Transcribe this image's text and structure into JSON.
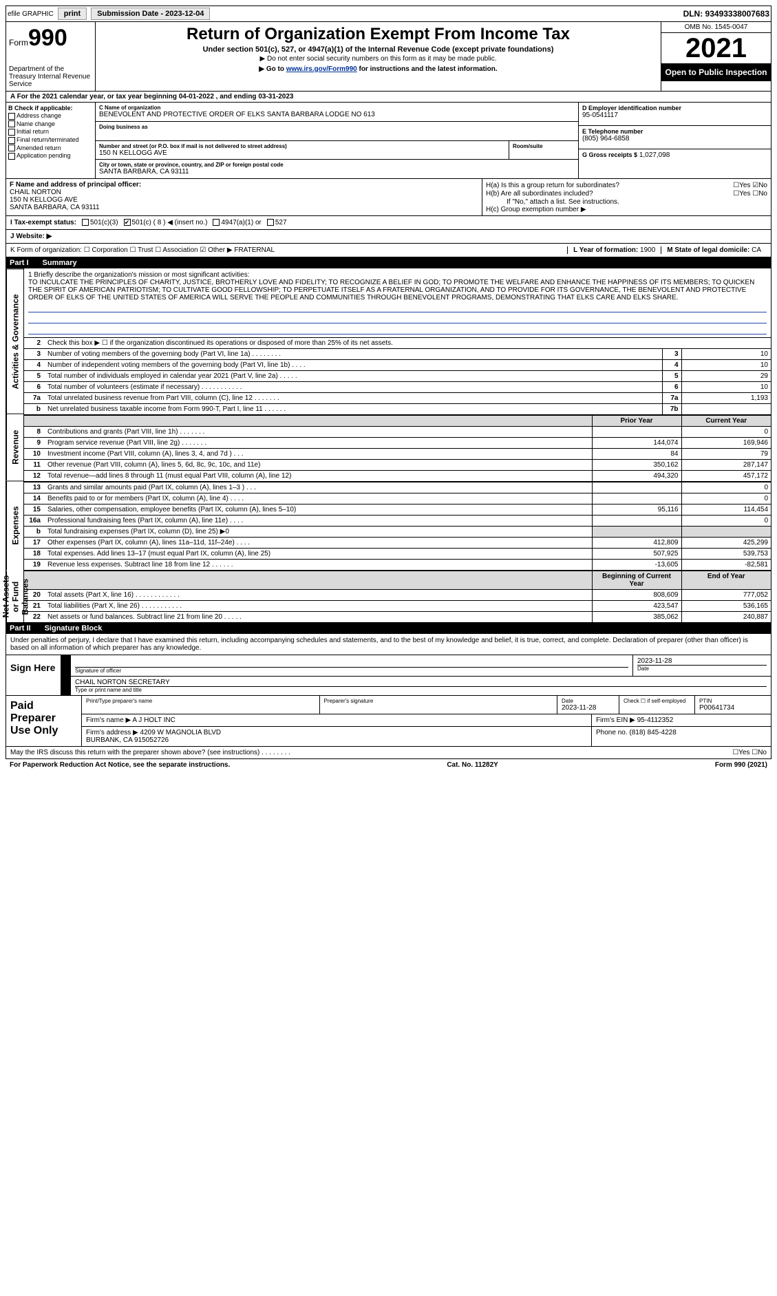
{
  "topbar": {
    "efile": "efile GRAPHIC",
    "print": "print",
    "sub_label": "Submission Date - 2023-12-04",
    "dln": "DLN: 93493338007683"
  },
  "header": {
    "form_word": "Form",
    "form_num": "990",
    "dept": "Department of the Treasury Internal Revenue Service",
    "title": "Return of Organization Exempt From Income Tax",
    "sub1": "Under section 501(c), 527, or 4947(a)(1) of the Internal Revenue Code (except private foundations)",
    "sub2": "▶ Do not enter social security numbers on this form as it may be made public.",
    "sub3_pre": "▶ Go to ",
    "sub3_link": "www.irs.gov/Form990",
    "sub3_post": " for instructions and the latest information.",
    "omb": "OMB No. 1545-0047",
    "year": "2021",
    "open_pub": "Open to Public Inspection"
  },
  "rowA": "A For the 2021 calendar year, or tax year beginning 04-01-2022   , and ending 03-31-2023",
  "colB": {
    "title": "B Check if applicable:",
    "opts": [
      "Address change",
      "Name change",
      "Initial return",
      "Final return/terminated",
      "Amended return",
      "Application pending"
    ]
  },
  "colC": {
    "name_lbl": "C Name of organization",
    "name": "BENEVOLENT AND PROTECTIVE ORDER OF ELKS SANTA BARBARA LODGE NO 613",
    "dba_lbl": "Doing business as",
    "dba": "",
    "street_lbl": "Number and street (or P.O. box if mail is not delivered to street address)",
    "street": "150 N KELLOGG AVE",
    "room_lbl": "Room/suite",
    "city_lbl": "City or town, state or province, country, and ZIP or foreign postal code",
    "city": "SANTA BARBARA, CA  93111"
  },
  "colDE": {
    "ein_lbl": "D Employer identification number",
    "ein": "95-0541117",
    "phone_lbl": "E Telephone number",
    "phone": "(805) 964-6858",
    "gross_lbl": "G Gross receipts $",
    "gross": "1,027,098"
  },
  "colF": {
    "lbl": "F  Name and address of principal officer:",
    "name": "CHAIL NORTON",
    "addr1": "150 N KELLOGG AVE",
    "addr2": "SANTA BARBARA, CA  93111"
  },
  "colH": {
    "a": "H(a)  Is this a group return for subordinates?",
    "a_ans": "☐Yes ☑No",
    "b": "H(b)  Are all subordinates included?",
    "b_ans": "☐Yes ☐No",
    "b_note": "If \"No,\" attach a list. See instructions.",
    "c": "H(c)  Group exemption number ▶"
  },
  "rowI": {
    "lbl": "I   Tax-exempt status:",
    "o1": "501(c)(3)",
    "o2": "501(c) ( 8 ) ◀ (insert no.)",
    "o3": "4947(a)(1) or",
    "o4": "527"
  },
  "rowJ": "J   Website: ▶",
  "rowK": {
    "left": "K Form of organization:  ☐ Corporation  ☐ Trust  ☐ Association  ☑ Other ▶ FRATERNAL",
    "L_lbl": "L Year of formation:",
    "L_val": "1900",
    "M_lbl": "M State of legal domicile:",
    "M_val": "CA"
  },
  "part1": {
    "label": "Part I",
    "title": "Summary"
  },
  "mission": {
    "lbl": "1   Briefly describe the organization's mission or most significant activities:",
    "text": "TO INCULCATE THE PRINCIPLES OF CHARITY, JUSTICE, BROTHERLY LOVE AND FIDELITY; TO RECOGNIZE A BELIEF IN GOD; TO PROMOTE THE WELFARE AND ENHANCE THE HAPPINESS OF ITS MEMBERS; TO QUICKEN THE SPIRIT OF AMERICAN PATRIOTISM; TO CULTIVATE GOOD FELLOWSHIP; TO PERPETUATE ITSELF AS A FRATERNAL ORGANIZATION, AND TO PROVIDE FOR ITS GOVERNANCE, THE BENEVOLENT AND PROTECTIVE ORDER OF ELKS OF THE UNITED STATES OF AMERICA WILL SERVE THE PEOPLE AND COMMUNITIES THROUGH BENEVOLENT PROGRAMS, DEMONSTRATING THAT ELKS CARE AND ELKS SHARE."
  },
  "gov_lines": [
    {
      "n": "2",
      "t": "Check this box ▶ ☐ if the organization discontinued its operations or disposed of more than 25% of its net assets."
    },
    {
      "n": "3",
      "t": "Number of voting members of the governing body (Part VI, line 1a)  .  .  .  .  .  .  .  .",
      "box": "3",
      "v": "10"
    },
    {
      "n": "4",
      "t": "Number of independent voting members of the governing body (Part VI, line 1b)  .  .  .  .",
      "box": "4",
      "v": "10"
    },
    {
      "n": "5",
      "t": "Total number of individuals employed in calendar year 2021 (Part V, line 2a)  .  .  .  .  .",
      "box": "5",
      "v": "29"
    },
    {
      "n": "6",
      "t": "Total number of volunteers (estimate if necessary)  .  .  .  .  .  .  .  .  .  .  .",
      "box": "6",
      "v": "10"
    },
    {
      "n": "7a",
      "t": "Total unrelated business revenue from Part VIII, column (C), line 12  .  .  .  .  .  .  .",
      "box": "7a",
      "v": "1,193"
    },
    {
      "n": "b",
      "t": "Net unrelated business taxable income from Form 990-T, Part I, line 11  .  .  .  .  .  .",
      "box": "7b",
      "v": ""
    }
  ],
  "rev_hdr": {
    "prior": "Prior Year",
    "curr": "Current Year"
  },
  "rev_lines": [
    {
      "n": "8",
      "t": "Contributions and grants (Part VIII, line 1h)  .  .  .  .  .  .  .",
      "p": "",
      "c": "0"
    },
    {
      "n": "9",
      "t": "Program service revenue (Part VIII, line 2g)  .  .  .  .  .  .  .",
      "p": "144,074",
      "c": "169,946"
    },
    {
      "n": "10",
      "t": "Investment income (Part VIII, column (A), lines 3, 4, and 7d )  .  .  .",
      "p": "84",
      "c": "79"
    },
    {
      "n": "11",
      "t": "Other revenue (Part VIII, column (A), lines 5, 6d, 8c, 9c, 10c, and 11e)",
      "p": "350,162",
      "c": "287,147"
    },
    {
      "n": "12",
      "t": "Total revenue—add lines 8 through 11 (must equal Part VIII, column (A), line 12)",
      "p": "494,320",
      "c": "457,172"
    }
  ],
  "exp_lines": [
    {
      "n": "13",
      "t": "Grants and similar amounts paid (Part IX, column (A), lines 1–3 )  .  .  .",
      "p": "",
      "c": "0"
    },
    {
      "n": "14",
      "t": "Benefits paid to or for members (Part IX, column (A), line 4)  .  .  .  .",
      "p": "",
      "c": "0"
    },
    {
      "n": "15",
      "t": "Salaries, other compensation, employee benefits (Part IX, column (A), lines 5–10)",
      "p": "95,116",
      "c": "114,454"
    },
    {
      "n": "16a",
      "t": "Professional fundraising fees (Part IX, column (A), line 11e)  .  .  .  .",
      "p": "",
      "c": "0"
    },
    {
      "n": "b",
      "t": "Total fundraising expenses (Part IX, column (D), line 25) ▶0",
      "p": "shade",
      "c": "shade"
    },
    {
      "n": "17",
      "t": "Other expenses (Part IX, column (A), lines 11a–11d, 11f–24e)  .  .  .  .",
      "p": "412,809",
      "c": "425,299"
    },
    {
      "n": "18",
      "t": "Total expenses. Add lines 13–17 (must equal Part IX, column (A), line 25)",
      "p": "507,925",
      "c": "539,753"
    },
    {
      "n": "19",
      "t": "Revenue less expenses. Subtract line 18 from line 12  .  .  .  .  .  .",
      "p": "-13,605",
      "c": "-82,581"
    }
  ],
  "na_hdr": {
    "beg": "Beginning of Current Year",
    "end": "End of Year"
  },
  "na_lines": [
    {
      "n": "20",
      "t": "Total assets (Part X, line 16)  .  .  .  .  .  .  .  .  .  .  .  .",
      "p": "808,609",
      "c": "777,052"
    },
    {
      "n": "21",
      "t": "Total liabilities (Part X, line 26)  .  .  .  .  .  .  .  .  .  .  .",
      "p": "423,547",
      "c": "536,165"
    },
    {
      "n": "22",
      "t": "Net assets or fund balances. Subtract line 21 from line 20  .  .  .  .  .",
      "p": "385,062",
      "c": "240,887"
    }
  ],
  "side_labels": {
    "gov": "Activities & Governance",
    "rev": "Revenue",
    "exp": "Expenses",
    "na": "Net Assets or Fund Balances"
  },
  "part2": {
    "label": "Part II",
    "title": "Signature Block"
  },
  "sig": {
    "decl": "Under penalties of perjury, I declare that I have examined this return, including accompanying schedules and statements, and to the best of my knowledge and belief, it is true, correct, and complete. Declaration of preparer (other than officer) is based on all information of which preparer has any knowledge.",
    "sign_here": "Sign Here",
    "sig_of": "Signature of officer",
    "date": "2023-11-28",
    "date_lbl": "Date",
    "name": "CHAIL NORTON  SECRETARY",
    "name_lbl": "Type or print name and title"
  },
  "prep": {
    "title": "Paid Preparer Use Only",
    "h1": "Print/Type preparer's name",
    "h2": "Preparer's signature",
    "h3": "Date",
    "h4": "Check ☐ if self-employed",
    "h5": "PTIN",
    "date": "2023-11-28",
    "ptin": "P00641734",
    "firm_lbl": "Firm's name   ▶",
    "firm": "A J HOLT INC",
    "ein_lbl": "Firm's EIN ▶",
    "ein": "95-4112352",
    "addr_lbl": "Firm's address ▶",
    "addr": "4209 W MAGNOLIA BLVD\nBURBANK, CA  915052726",
    "ph_lbl": "Phone no.",
    "ph": "(818) 845-4228"
  },
  "footer": {
    "discuss": "May the IRS discuss this return with the preparer shown above? (see instructions)  .  .  .  .  .  .  .  .",
    "yn": "☐Yes  ☐No",
    "pra": "For Paperwork Reduction Act Notice, see the separate instructions.",
    "cat": "Cat. No. 11282Y",
    "form": "Form 990 (2021)"
  }
}
